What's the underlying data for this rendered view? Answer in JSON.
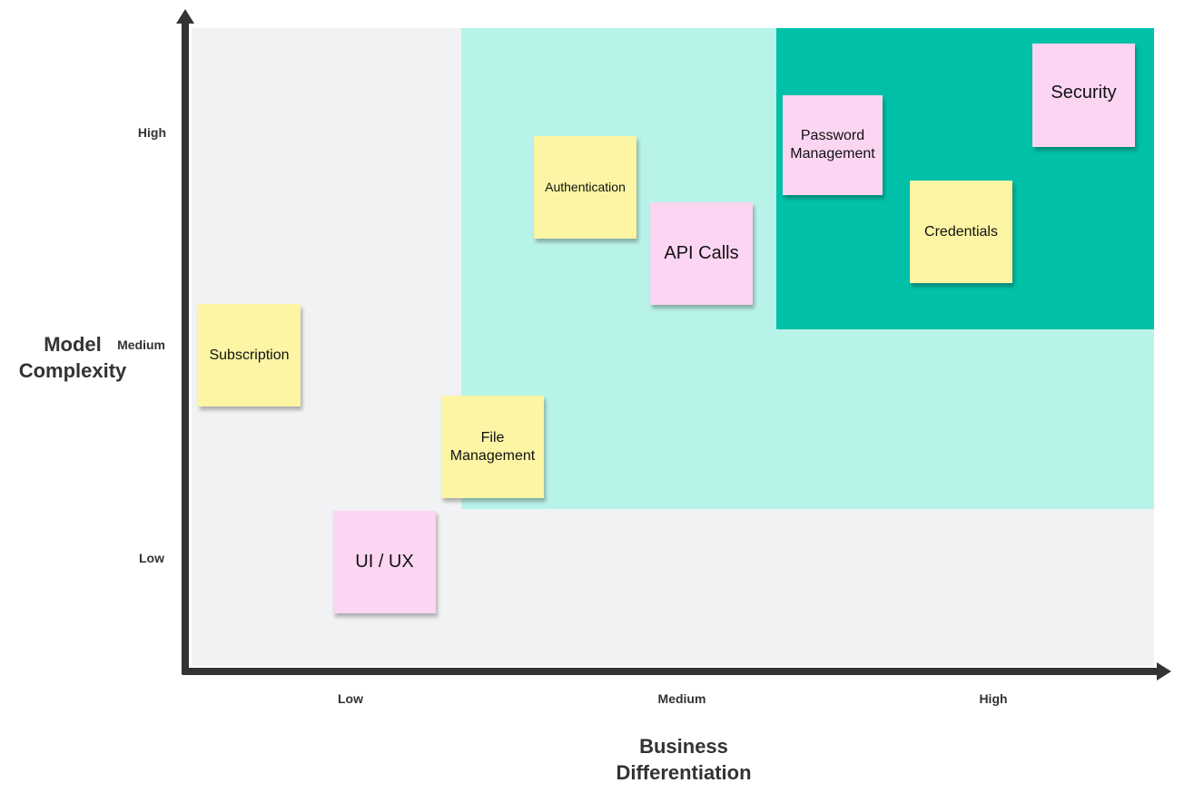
{
  "axes": {
    "y_title": "Model Complexity",
    "x_title": "Business Differentiation",
    "y_ticks": [
      "High",
      "Medium",
      "Low"
    ],
    "x_ticks": [
      "Low",
      "Medium",
      "High"
    ]
  },
  "colors": {
    "plot_background": "#f1f2f4",
    "core_zone": "#b8f3ea",
    "differentiator_zone": "#00c1a8",
    "sticky_yellow": "#fcf5a4",
    "sticky_pink": "#fcd5f3",
    "axis": "#333333"
  },
  "notes": [
    {
      "text": "Authentication",
      "color": "yellow"
    },
    {
      "text": "API Calls",
      "color": "pink"
    },
    {
      "text": "Password Management",
      "color": "pink"
    },
    {
      "text": "Security",
      "color": "pink"
    },
    {
      "text": "Credentials",
      "color": "yellow"
    },
    {
      "text": "Subscription",
      "color": "yellow"
    },
    {
      "text": "File Management",
      "color": "yellow"
    },
    {
      "text": "UI / UX",
      "color": "pink"
    }
  ]
}
